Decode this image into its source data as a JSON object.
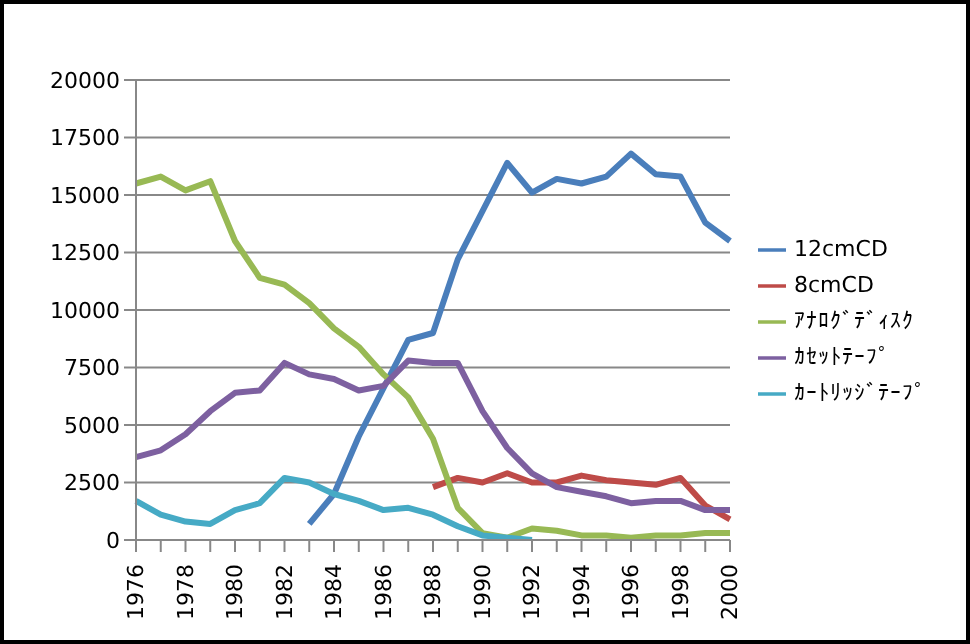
{
  "chart_data": {
    "type": "line",
    "categories": [
      "1976",
      null,
      "1978",
      null,
      "1980",
      null,
      "1982",
      null,
      "1984",
      null,
      "1986",
      null,
      "1988",
      null,
      "1990",
      null,
      "1992",
      null,
      "1994",
      null,
      "1996",
      null,
      "1998",
      null,
      "2000"
    ],
    "series": [
      {
        "name": "12cmCD",
        "color": "#4a7ebb",
        "values": [
          null,
          null,
          null,
          null,
          null,
          null,
          null,
          700,
          2000,
          4500,
          6600,
          8700,
          9000,
          12200,
          14300,
          16400,
          15100,
          15700,
          15500,
          15800,
          16800,
          15900,
          15800,
          13800,
          13000
        ]
      },
      {
        "name": "8cmCD",
        "color": "#be4b48",
        "values": [
          null,
          null,
          null,
          null,
          null,
          null,
          null,
          null,
          null,
          null,
          null,
          null,
          2300,
          2700,
          2500,
          2900,
          2500,
          2500,
          2800,
          2600,
          2500,
          2400,
          2700,
          1500,
          900
        ]
      },
      {
        "name": "ｱﾅﾛｸﾞﾃﾞｨｽｸ",
        "color": "#98b954",
        "values": [
          15500,
          15800,
          15200,
          15600,
          13000,
          11400,
          11100,
          10300,
          9200,
          8400,
          7200,
          6200,
          4400,
          1400,
          300,
          100,
          500,
          400,
          200,
          200,
          100,
          200,
          200,
          300,
          300
        ]
      },
      {
        "name": "ｶｾｯﾄﾃｰﾌﾟ",
        "color": "#7d60a0",
        "values": [
          3600,
          3900,
          4600,
          5600,
          6400,
          6500,
          7700,
          7200,
          7000,
          6500,
          6700,
          7800,
          7700,
          7700,
          5600,
          4000,
          2900,
          2300,
          2100,
          1900,
          1600,
          1700,
          1700,
          1300,
          1300
        ]
      },
      {
        "name": "ｶｰﾄﾘｯｼﾞﾃｰﾌﾟ",
        "color": "#46aac5",
        "values": [
          1700,
          1100,
          800,
          700,
          1300,
          1600,
          2700,
          2500,
          2000,
          1700,
          1300,
          1400,
          1100,
          600,
          200,
          100,
          0,
          null,
          null,
          null,
          null,
          null,
          null,
          null,
          null
        ]
      }
    ],
    "ylim": [
      0,
      20000
    ],
    "yticks": [
      0,
      2500,
      5000,
      7500,
      10000,
      12500,
      15000,
      17500,
      20000
    ],
    "grid": "y",
    "legend": "right",
    "marker": "none",
    "line_style": "solid"
  }
}
